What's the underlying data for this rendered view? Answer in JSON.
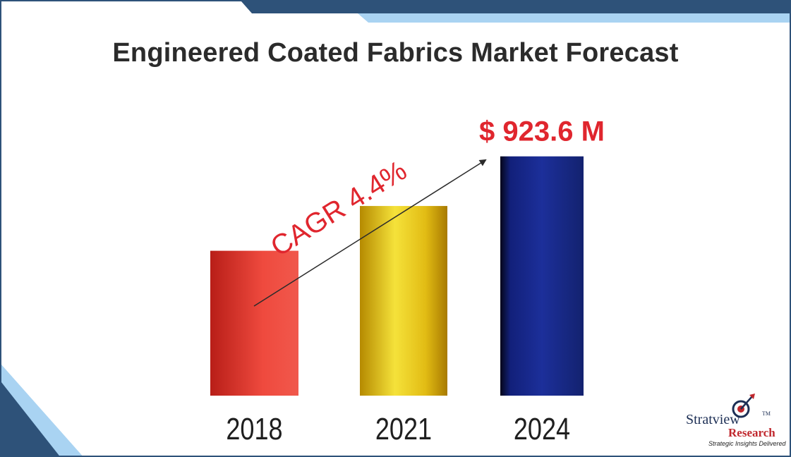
{
  "title": "Engineered Coated Fabrics Market Forecast",
  "colors": {
    "frame": "#2e5279",
    "accent_light": "#a9d3f2",
    "bar_2018": "#e0332d",
    "bar_2021": "#e6c21a",
    "bar_2024": "#1a2a8c",
    "highlight_text": "#e0262e"
  },
  "chart_data": {
    "type": "bar",
    "title": "Engineered Coated Fabrics Market Forecast",
    "categories": [
      "2018",
      "2021",
      "2024"
    ],
    "values": [
      717,
      815,
      923.6
    ],
    "value_labels": [
      "",
      "",
      "$ 923.6 M"
    ],
    "annotations": [
      "CAGR 4.4%"
    ],
    "xlabel": "",
    "ylabel": "",
    "grid": false,
    "legend": "none"
  },
  "logo": {
    "name": "Stratview",
    "trademark": "TM",
    "sub": "Research",
    "tagline": "Strategic Insights Delivered"
  }
}
